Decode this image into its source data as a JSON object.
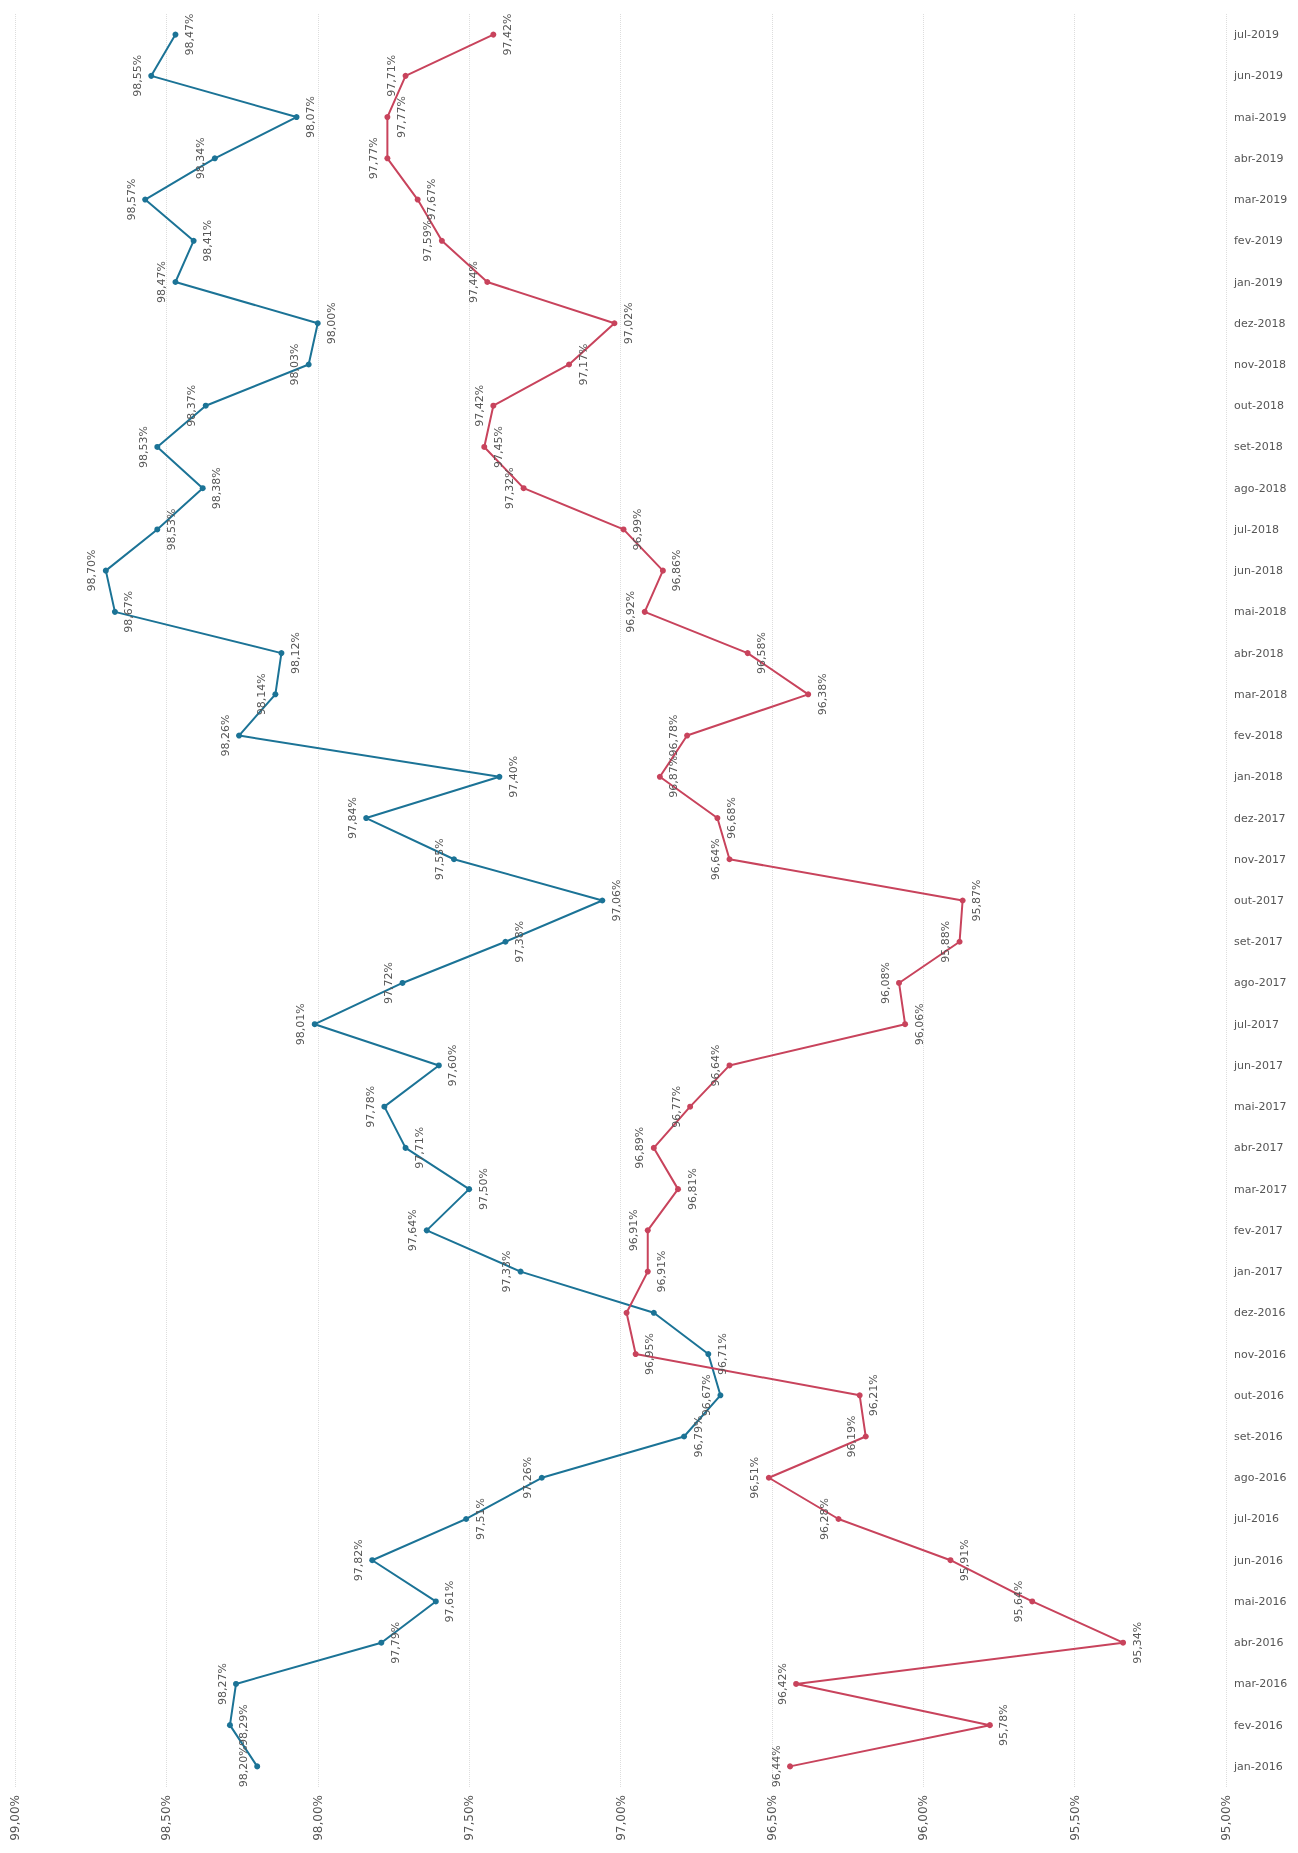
{
  "chart_data": {
    "type": "line",
    "categories": [
      "jul-2019",
      "jun-2019",
      "mai-2019",
      "abr-2019",
      "mar-2019",
      "fev-2019",
      "jan-2019",
      "dez-2018",
      "nov-2018",
      "out-2018",
      "set-2018",
      "ago-2018",
      "jul-2018",
      "jun-2018",
      "mai-2018",
      "abr-2018",
      "mar-2018",
      "fev-2018",
      "jan-2018",
      "dez-2017",
      "nov-2017",
      "out-2017",
      "set-2017",
      "ago-2017",
      "jul-2017",
      "jun-2017",
      "mai-2017",
      "abr-2017",
      "mar-2017",
      "fev-2017",
      "jan-2017",
      "dez-2016",
      "nov-2016",
      "out-2016",
      "set-2016",
      "ago-2016",
      "jul-2016",
      "jun-2016",
      "mai-2016",
      "abr-2016",
      "mar-2016",
      "fev-2016",
      "jan-2016"
    ],
    "series": [
      {
        "color": "#1b7396",
        "values": [
          98.47,
          98.55,
          98.07,
          98.34,
          98.57,
          98.41,
          98.47,
          98.0,
          98.03,
          98.37,
          98.53,
          98.38,
          98.53,
          98.7,
          98.67,
          98.12,
          98.14,
          98.26,
          97.4,
          97.84,
          97.55,
          97.06,
          97.38,
          97.72,
          98.01,
          97.6,
          97.78,
          97.71,
          97.5,
          97.64,
          97.33,
          96.89,
          96.71,
          96.67,
          96.79,
          97.26,
          97.51,
          97.82,
          97.61,
          97.79,
          98.27,
          98.29,
          98.2
        ],
        "value_labels": [
          "98,47%",
          "98,55%",
          "98,07%",
          "98,34%",
          "98,57%",
          "98,41%",
          "98,47%",
          "98,00%",
          "98,03%",
          "98,37%",
          "98,53%",
          "98,38%",
          "98,53%",
          "98,70%",
          "98,67%",
          "98,12%",
          "98,14%",
          "98,26%",
          "97,40%",
          "97,84%",
          "97,55%",
          "97,06%",
          "97,38%",
          "97,72%",
          "98,01%",
          "97,60%",
          "97,78%",
          "97,71%",
          "97,50%",
          "97,64%",
          "97,33%",
          null,
          "96,71%",
          "96,67%",
          "96,79%",
          "97,26%",
          "97,51%",
          "97,82%",
          "97,61%",
          "97,79%",
          "98,27%",
          "98,29%",
          "98,20%"
        ]
      },
      {
        "color": "#c8435c",
        "values": [
          97.42,
          97.71,
          97.77,
          97.77,
          97.67,
          97.59,
          97.44,
          97.02,
          97.17,
          97.42,
          97.45,
          97.32,
          96.99,
          96.86,
          96.92,
          96.58,
          96.38,
          96.78,
          96.87,
          96.68,
          96.64,
          95.87,
          95.88,
          96.08,
          96.06,
          96.64,
          96.77,
          96.89,
          96.81,
          96.91,
          96.91,
          96.98,
          96.95,
          96.21,
          96.19,
          96.51,
          96.28,
          95.91,
          95.64,
          95.34,
          96.42,
          95.78,
          96.44
        ],
        "value_labels": [
          "97,42%",
          "97,71%",
          "97,77%",
          "97,77%",
          "97,67%",
          "97,59%",
          "97,44%",
          "97,02%",
          "97,17%",
          "97,42%",
          "97,45%",
          "97,32%",
          "96,99%",
          "96,86%",
          "96,92%",
          "96,58%",
          "96,38%",
          "96,78%",
          "96,87%",
          "96,68%",
          "96,64%",
          "95,87%",
          "95,88%",
          "96,08%",
          "96,06%",
          "96,64%",
          "96,77%",
          "96,89%",
          "96,81%",
          "96,91%",
          "96,91%",
          null,
          "96,95%",
          "96,21%",
          "96,19%",
          "96,51%",
          "96,28%",
          "95,91%",
          "95,64%",
          "95,34%",
          "96,42%",
          "95,78%",
          "96,44%"
        ]
      }
    ],
    "orientation": "horizontal",
    "xlim": [
      99,
      95
    ],
    "xticks": [
      {
        "value": 99,
        "label": "99,00%"
      },
      {
        "value": 98.5,
        "label": "98,50%"
      },
      {
        "value": 98,
        "label": "98,00%"
      },
      {
        "value": 97.5,
        "label": "97,50%"
      },
      {
        "value": 97,
        "label": "97,00%"
      },
      {
        "value": 96.5,
        "label": "96,50%"
      },
      {
        "value": 96,
        "label": "96,00%"
      },
      {
        "value": 95.5,
        "label": "95,50%"
      },
      {
        "value": 95,
        "label": "95,00%"
      }
    ],
    "grid": "x",
    "marker": "circle",
    "line_style": "solid"
  }
}
